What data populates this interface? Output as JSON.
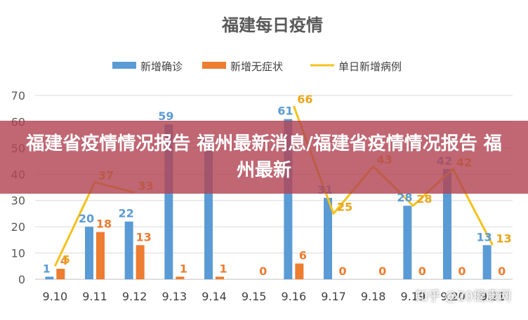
{
  "chart_data": {
    "type": "bar",
    "title": "福建每日疫情",
    "categories": [
      "9.10",
      "9.11",
      "9.12",
      "9.13",
      "9.14",
      "9.15",
      "9.16",
      "9.17",
      "9.18",
      "9.19",
      "9.20",
      "9.21"
    ],
    "series": [
      {
        "name": "新增确诊",
        "type": "bar",
        "color": "#5b9bd5",
        "values": [
          1,
          20,
          22,
          59,
          50,
          null,
          61,
          31,
          null,
          28,
          42,
          13
        ]
      },
      {
        "name": "新增无症状",
        "type": "bar",
        "color": "#ed7d31",
        "values": [
          4,
          18,
          13,
          1,
          1,
          0,
          6,
          0,
          0,
          0,
          0,
          0
        ]
      },
      {
        "name": "单日新增病例",
        "type": "line",
        "color": "#f4c21b",
        "values": [
          5,
          37,
          33,
          null,
          null,
          null,
          66,
          25,
          43,
          28,
          42,
          13
        ]
      }
    ],
    "ylim": [
      0,
      70
    ],
    "yticks": [
      0,
      10,
      20,
      30,
      40,
      50,
      60,
      70
    ],
    "grid": true,
    "legend": "top"
  },
  "overlay": {
    "headline": "福建省疫情情况报告 福州最新消息/福建省疫情情况报告 福州最新",
    "watermark": "知乎 @20健康网"
  }
}
